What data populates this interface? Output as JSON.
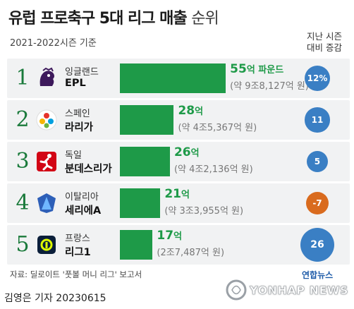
{
  "header": {
    "title_bold": "유럽 프로축구 5대 리그 매출",
    "title_light": "순위",
    "subtitle": "2021-2022시즌 기준",
    "col_header_1": "지난 시즌",
    "col_header_2": "대비 증감"
  },
  "chart_data": {
    "type": "bar",
    "categories": [
      "EPL",
      "라리가",
      "분데스리가",
      "세리에A",
      "리그1"
    ],
    "series": [
      {
        "values_euro_100m": [
          55,
          28,
          26,
          21,
          17
        ]
      },
      {
        "values_pct_change": [
          12,
          11,
          5,
          -7,
          26
        ]
      }
    ],
    "rows": [
      {
        "rank": "1",
        "country": "잉글랜드",
        "league": "EPL",
        "value": 55,
        "value_label": "55",
        "unit_label": "억 파운드",
        "sub_label": "(약 9조8,127억 원)",
        "change": 12,
        "change_label": "12%",
        "change_color": "#3a7fc4",
        "logo_icon": "premier-league-lion-icon"
      },
      {
        "rank": "2",
        "country": "스페인",
        "league": "라리가",
        "value": 28,
        "value_label": "28",
        "unit_label": "억",
        "sub_label": "(약 4조5,367억 원)",
        "change": 11,
        "change_label": "11",
        "change_color": "#3a7fc4",
        "logo_icon": "laliga-ball-icon"
      },
      {
        "rank": "3",
        "country": "독일",
        "league": "분데스리가",
        "value": 26,
        "value_label": "26",
        "unit_label": "억",
        "sub_label": "(약 4조2,136억 원)",
        "change": 5,
        "change_label": "5",
        "change_color": "#3a7fc4",
        "logo_icon": "bundesliga-player-icon"
      },
      {
        "rank": "4",
        "country": "이탈리아",
        "league": "세리에A",
        "value": 21,
        "value_label": "21",
        "unit_label": "억",
        "sub_label": "(약 3조3,955억 원)",
        "change": -7,
        "change_label": "-7",
        "change_color": "#d96b1e",
        "logo_icon": "serie-a-icon"
      },
      {
        "rank": "5",
        "country": "프랑스",
        "league": "리그1",
        "value": 17,
        "value_label": "17",
        "unit_label": "억",
        "sub_label": "(2조7,487억 원)",
        "change": 26,
        "change_label": "26",
        "change_color": "#3a7fc4",
        "logo_icon": "ligue1-icon"
      }
    ]
  },
  "footer": {
    "source": "자료: 딜로이트 '풋볼 머니 리그' 보고서",
    "byline": "김영은 기자  20230615",
    "agency_korean": "연합뉴스",
    "agency_english": "YONHAP NEWS"
  },
  "colors": {
    "bar": "#1e9a48",
    "rank": "#1a7a3b",
    "increase": "#3a7fc4",
    "decrease": "#d96b1e"
  }
}
